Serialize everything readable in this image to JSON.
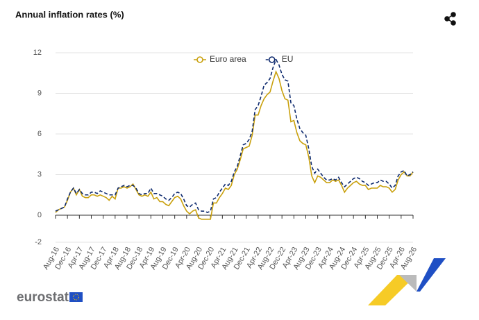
{
  "chart_data": {
    "type": "line",
    "title": "Annual inflation rates (%)",
    "logo": "eurostat",
    "categories": [
      "Aug-16",
      null,
      null,
      null,
      "Dec-16",
      null,
      null,
      null,
      "Apr-17",
      null,
      null,
      null,
      "Aug-17",
      null,
      null,
      null,
      "Dec-17",
      null,
      null,
      null,
      "Apr-18",
      null,
      null,
      null,
      "Aug-18",
      null,
      null,
      null,
      "Dec-18",
      null,
      null,
      null,
      "Apr-19",
      null,
      null,
      null,
      "Aug-19",
      null,
      null,
      null,
      "Dec-19",
      null,
      null,
      null,
      "Apr-20",
      null,
      null,
      null,
      "Aug-20",
      null,
      null,
      null,
      "Dec-20",
      null,
      null,
      null,
      "Apr-21",
      null,
      null,
      null,
      "Aug-21",
      null,
      null,
      null,
      "Dec-21",
      null,
      null,
      null,
      "Apr-22",
      null,
      null,
      null,
      "Aug-22",
      null,
      null,
      null,
      "Dec-22",
      null,
      null,
      null,
      "Apr-23",
      null,
      null,
      null,
      "Aug-23",
      null,
      null,
      null,
      "Dec-23",
      null,
      null,
      null,
      "Apr-24",
      null,
      null,
      null,
      "Aug-24",
      null,
      null,
      null,
      "Dec-24",
      null,
      null,
      null,
      "Apr-25",
      null,
      null,
      null,
      "Aug-25",
      null,
      null,
      null,
      "Dec-25",
      null,
      null,
      null,
      "Apr-26",
      null,
      null,
      null,
      "Aug-26"
    ],
    "series": [
      {
        "name": "Euro area",
        "color": "#c9a00c",
        "dashed": false,
        "values": [
          0.2,
          0.4,
          0.5,
          0.6,
          1.1,
          1.7,
          2.0,
          1.5,
          1.9,
          1.4,
          1.3,
          1.3,
          1.5,
          1.5,
          1.4,
          1.5,
          1.4,
          1.3,
          1.1,
          1.4,
          1.2,
          2.0,
          2.0,
          2.1,
          2.0,
          2.1,
          2.3,
          1.9,
          1.5,
          1.4,
          1.5,
          1.4,
          1.7,
          1.2,
          1.3,
          1.0,
          1.0,
          0.8,
          0.7,
          1.0,
          1.3,
          1.4,
          1.2,
          0.7,
          0.3,
          0.1,
          0.3,
          0.4,
          -0.2,
          -0.3,
          -0.3,
          -0.3,
          -0.3,
          0.9,
          0.9,
          1.3,
          1.6,
          2.0,
          1.9,
          2.2,
          3.0,
          3.4,
          4.1,
          4.9,
          5.0,
          5.1,
          5.9,
          7.4,
          7.4,
          8.1,
          8.6,
          8.9,
          9.1,
          9.9,
          10.6,
          10.1,
          9.2,
          8.6,
          8.5,
          6.9,
          7.0,
          6.1,
          5.5,
          5.3,
          5.2,
          4.3,
          2.9,
          2.4,
          2.9,
          2.8,
          2.6,
          2.4,
          2.4,
          2.6,
          2.5,
          2.6,
          2.2,
          1.7,
          2.0,
          2.2,
          2.4,
          2.5,
          2.3,
          2.2,
          2.2,
          1.9,
          2.0,
          2.0,
          2.0,
          2.2,
          2.1,
          2.1,
          2.0,
          1.7,
          1.9,
          2.6,
          3.0,
          3.2,
          2.9,
          2.9,
          3.2
        ]
      },
      {
        "name": "EU",
        "color": "#0e2a6e",
        "dashed": true,
        "values": [
          0.3,
          0.4,
          0.5,
          0.6,
          1.2,
          1.7,
          2.0,
          1.6,
          1.9,
          1.6,
          1.5,
          1.5,
          1.7,
          1.7,
          1.6,
          1.8,
          1.7,
          1.6,
          1.5,
          1.5,
          1.5,
          2.0,
          2.1,
          2.2,
          2.1,
          2.2,
          2.2,
          2.0,
          1.6,
          1.5,
          1.6,
          1.6,
          2.0,
          1.6,
          1.6,
          1.5,
          1.4,
          1.2,
          1.1,
          1.3,
          1.6,
          1.7,
          1.6,
          1.2,
          0.7,
          0.6,
          0.8,
          0.9,
          0.4,
          0.3,
          0.3,
          0.2,
          0.3,
          1.2,
          1.3,
          1.7,
          2.0,
          2.3,
          2.2,
          2.5,
          3.2,
          3.6,
          4.4,
          5.2,
          5.3,
          5.6,
          6.2,
          7.8,
          8.1,
          8.8,
          9.6,
          9.8,
          10.1,
          10.9,
          11.5,
          11.1,
          10.4,
          10.0,
          9.9,
          8.3,
          8.1,
          7.1,
          6.4,
          6.1,
          5.9,
          4.9,
          3.6,
          3.1,
          3.4,
          3.1,
          2.8,
          2.6,
          2.6,
          2.7,
          2.6,
          2.8,
          2.4,
          2.1,
          2.3,
          2.5,
          2.7,
          2.8,
          2.7,
          2.5,
          2.4,
          2.2,
          2.3,
          2.4,
          2.4,
          2.6,
          2.5,
          2.5,
          2.3,
          2.0,
          2.2,
          2.9,
          3.2,
          3.3,
          2.9,
          3.0,
          3.2
        ]
      }
    ],
    "ylim": [
      -2,
      12
    ],
    "yticks": [
      -2,
      0,
      3,
      6,
      9,
      12
    ],
    "grid": true,
    "legend": "top"
  }
}
